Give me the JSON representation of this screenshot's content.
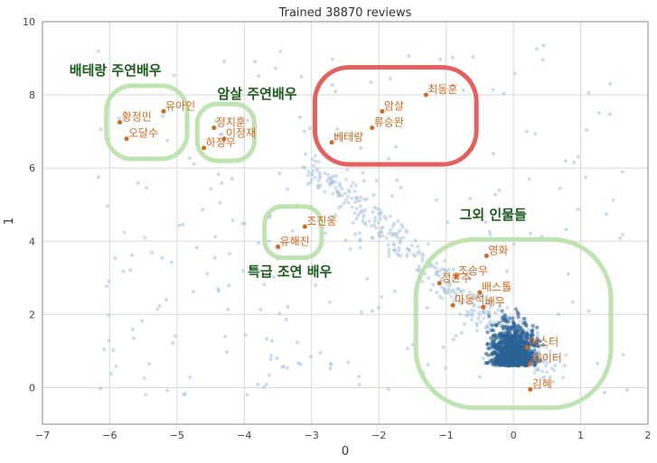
{
  "chart_data": {
    "type": "scatter",
    "title": "Trained 38870 reviews",
    "xlabel": "0",
    "ylabel": "1",
    "xlim": [
      -7,
      2
    ],
    "ylim": [
      -1,
      10
    ],
    "x_ticks": [
      {
        "value": -7,
        "label": "−7"
      },
      {
        "value": -6,
        "label": "−6"
      },
      {
        "value": -5,
        "label": "−5"
      },
      {
        "value": -4,
        "label": "−4"
      },
      {
        "value": -3,
        "label": "−3"
      },
      {
        "value": -2,
        "label": "−2"
      },
      {
        "value": -1,
        "label": "−1"
      },
      {
        "value": 0,
        "label": "0"
      },
      {
        "value": 1,
        "label": "1"
      },
      {
        "value": 2,
        "label": "2"
      }
    ],
    "y_ticks": [
      0,
      2,
      4,
      6,
      8,
      10
    ],
    "grid": true,
    "colors": {
      "background_points": "#a9c4dc",
      "dense_points": "#2b6396",
      "labeled_points": "#d2691e",
      "red_group": "#e05050",
      "green_group": "#b8e0a8",
      "group_text": "#1a5a1a"
    },
    "labeled_points": [
      {
        "label": "황정민",
        "x": -5.85,
        "y": 7.25
      },
      {
        "label": "유아인",
        "x": -5.2,
        "y": 7.55
      },
      {
        "label": "오달수",
        "x": -5.75,
        "y": 6.8
      },
      {
        "label": "정지훈",
        "x": -4.45,
        "y": 7.1
      },
      {
        "label": "이정재",
        "x": -4.3,
        "y": 6.8
      },
      {
        "label": "하정우",
        "x": -4.6,
        "y": 6.55
      },
      {
        "label": "최동훈",
        "x": -1.3,
        "y": 8.0
      },
      {
        "label": "암살",
        "x": -1.95,
        "y": 7.55
      },
      {
        "label": "류승완",
        "x": -2.1,
        "y": 7.1
      },
      {
        "label": "베테랑",
        "x": -2.7,
        "y": 6.7
      },
      {
        "label": "조진웅",
        "x": -3.1,
        "y": 4.4
      },
      {
        "label": "유해진",
        "x": -3.5,
        "y": 3.85
      },
      {
        "label": "영화",
        "x": -0.4,
        "y": 3.6
      },
      {
        "label": "조승우",
        "x": -0.85,
        "y": 3.05
      },
      {
        "label": "정윤주",
        "x": -1.1,
        "y": 2.85
      },
      {
        "label": "배스톨",
        "x": -0.5,
        "y": 2.6
      },
      {
        "label": "마동석",
        "x": -0.9,
        "y": 2.25
      },
      {
        "label": "배우",
        "x": -0.45,
        "y": 2.2
      },
      {
        "label": "마스터",
        "x": 0.2,
        "y": 1.1
      },
      {
        "label": "데이터",
        "x": 0.25,
        "y": 0.65
      },
      {
        "label": "김혜",
        "x": 0.25,
        "y": -0.05
      }
    ],
    "groups": [
      {
        "label": "배테랑 주연배우",
        "color": "red_or_green",
        "style": "green",
        "x_range": [
          -6.05,
          -4.85
        ],
        "y_range": [
          6.25,
          8.25
        ]
      },
      {
        "label": "암살 주연배우",
        "style": "green",
        "x_range": [
          -4.7,
          -3.85
        ],
        "y_range": [
          6.2,
          7.75
        ]
      },
      {
        "label": "",
        "style": "red",
        "x_range": [
          -2.95,
          -0.55
        ],
        "y_range": [
          6.1,
          8.75
        ]
      },
      {
        "label": "특급 조연 배우",
        "style": "green",
        "x_range": [
          -3.7,
          -2.85
        ],
        "y_range": [
          3.55,
          4.95
        ]
      },
      {
        "label": "그외 인물들",
        "style": "green",
        "x_range": [
          -1.45,
          1.45
        ],
        "y_range": [
          -0.55,
          4.05
        ]
      }
    ],
    "group_label_positions": [
      {
        "label": "배테랑 주연배우",
        "x": -6.6,
        "y": 8.55
      },
      {
        "label": "암살 주연배우",
        "x": -4.4,
        "y": 7.9
      },
      {
        "label": "특급 조연 배우",
        "x": -3.95,
        "y": 3.05
      },
      {
        "label": "그외 인물들",
        "x": -0.8,
        "y": 4.6
      }
    ]
  }
}
